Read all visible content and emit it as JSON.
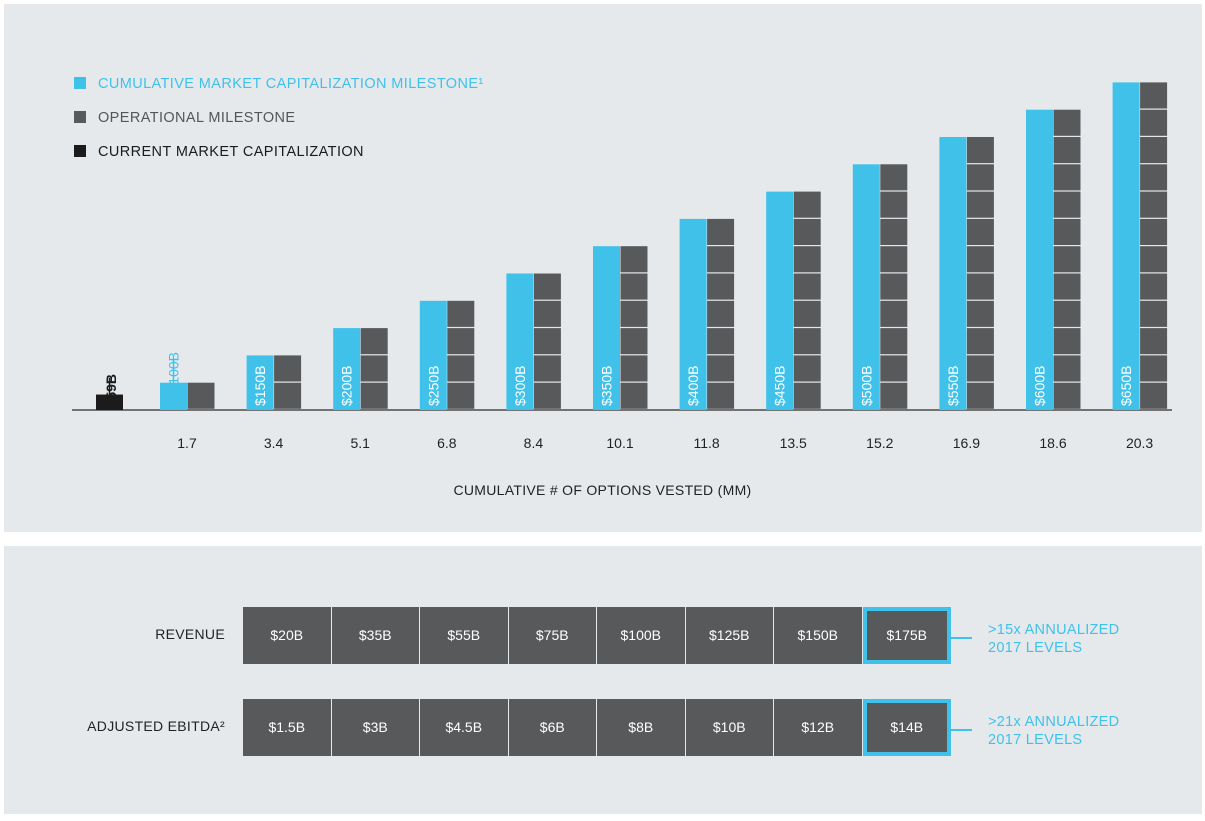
{
  "colors": {
    "market_cap_milestone": "#3fc1ea",
    "operational_milestone": "#58595b",
    "current_market_cap": "#1b1b1b",
    "highlight": "#3fc1ea"
  },
  "legend": [
    {
      "label": "CUMULATIVE MARKET CAPITALIZATION MILESTONE¹",
      "color": "#3fc1ea",
      "text_color": "#3fc1ea"
    },
    {
      "label": "OPERATIONAL MILESTONE",
      "color": "#58595b",
      "text_color": "#555555"
    },
    {
      "label": "CURRENT MARKET CAPITALIZATION",
      "color": "#1b1b1b",
      "text_color": "#1b1b1b"
    }
  ],
  "chart_data": {
    "type": "bar",
    "title": "",
    "xlabel": "CUMULATIVE # OF OPTIONS VESTED (MM)",
    "ylabel": "",
    "current_market_cap": {
      "value": 59,
      "label": "$59B"
    },
    "categories": [
      "1.7",
      "3.4",
      "5.1",
      "6.8",
      "8.4",
      "10.1",
      "11.8",
      "13.5",
      "15.2",
      "16.9",
      "18.6",
      "20.3"
    ],
    "series": [
      {
        "name": "CUMULATIVE MARKET CAPITALIZATION MILESTONE¹",
        "values": [
          100,
          150,
          200,
          250,
          300,
          350,
          400,
          450,
          500,
          550,
          600,
          650
        ],
        "labels": [
          "$100B",
          "$150B",
          "$200B",
          "$250B",
          "$300B",
          "$350B",
          "$400B",
          "$450B",
          "$500B",
          "$550B",
          "$600B",
          "$650B"
        ]
      },
      {
        "name": "OPERATIONAL MILESTONE",
        "values": [
          1,
          2,
          3,
          4,
          5,
          6,
          7,
          8,
          9,
          10,
          11,
          12
        ]
      }
    ]
  },
  "milestone_table": {
    "rows": [
      {
        "label": "REVENUE",
        "values": [
          "$20B",
          "$35B",
          "$55B",
          "$75B",
          "$100B",
          "$125B",
          "$150B",
          "$175B"
        ],
        "note": [
          ">15x ANNUALIZED",
          "2017 LEVELS"
        ]
      },
      {
        "label": "ADJUSTED EBITDA²",
        "values": [
          "$1.5B",
          "$3B",
          "$4.5B",
          "$6B",
          "$8B",
          "$10B",
          "$12B",
          "$14B"
        ],
        "note": [
          ">21x ANNUALIZED",
          "2017 LEVELS"
        ]
      }
    ]
  }
}
